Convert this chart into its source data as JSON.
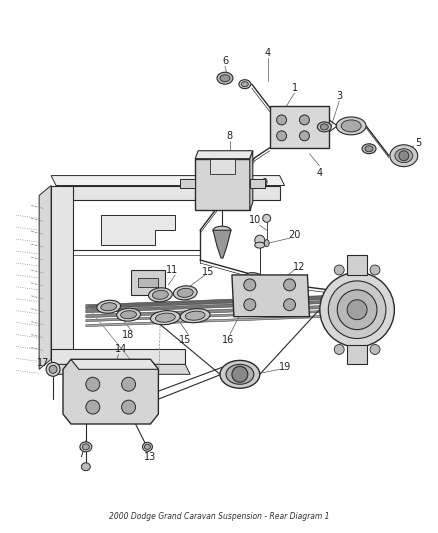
{
  "title": "2000 Dodge Grand Caravan Suspension - Rear Diagram 1",
  "bg": "#ffffff",
  "lc": "#2a2a2a",
  "figsize": [
    4.38,
    5.33
  ],
  "dpi": 100,
  "parts": {
    "frame_color": "#e0e0e0",
    "spring_color": "#888888",
    "bushing_color": "#c8c8c8",
    "dark_color": "#555555"
  }
}
